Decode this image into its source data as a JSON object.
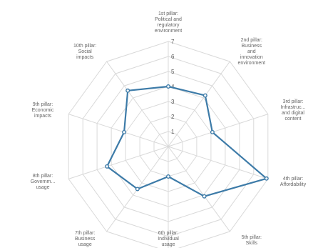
{
  "chart_data": {
    "type": "radar",
    "title": "",
    "categories": [
      [
        "1st pillar:",
        "Political and",
        "regulatory",
        "environment"
      ],
      [
        "2nd pillar:",
        "Business",
        "and",
        "innovation",
        "environment"
      ],
      [
        "3rd pillar:",
        "Infrastruc...",
        "and digital",
        "content"
      ],
      [
        "4th pillar:",
        "Affordability"
      ],
      [
        "5th pillar:",
        "Skills"
      ],
      [
        "6th pillar:",
        "Individual",
        "usage"
      ],
      [
        "7th pillar:",
        "Business",
        "usage"
      ],
      [
        "8th pillar:",
        "Governm...",
        "usage"
      ],
      [
        "9th pillar:",
        "Economic",
        "impacts"
      ],
      [
        "10th pillar:",
        "Social",
        "impacts"
      ]
    ],
    "rlim": [
      0,
      7
    ],
    "ticks": [
      "1",
      "2",
      "3",
      "4",
      "5",
      "6",
      "7"
    ],
    "series": [
      {
        "values": [
          4.0,
          4.2,
          3.1,
          6.9,
          4.1,
          2.0,
          3.5,
          4.3,
          3.1,
          4.6
        ]
      }
    ],
    "grid": true,
    "colors": {
      "series": "#3d7ba8",
      "grid": "#d9d9d9"
    }
  }
}
